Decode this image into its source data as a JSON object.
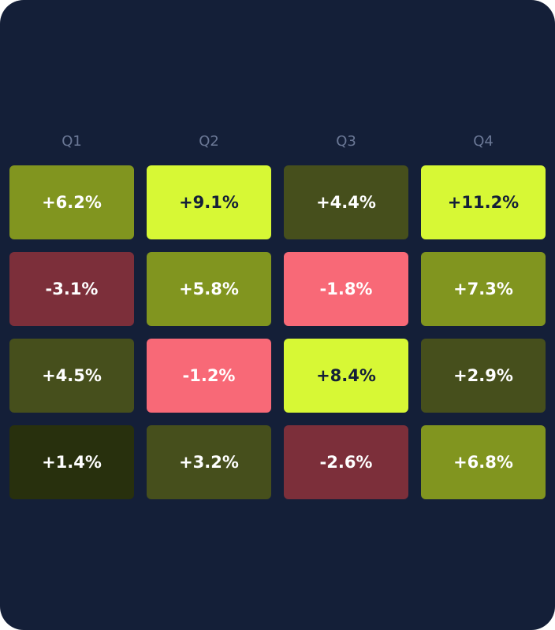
{
  "chart_data": {
    "type": "heatmap",
    "columns": [
      "Q1",
      "Q2",
      "Q3",
      "Q4"
    ],
    "values": [
      [
        6.2,
        9.1,
        4.4,
        11.2
      ],
      [
        -3.1,
        5.8,
        -1.8,
        7.3
      ],
      [
        4.5,
        -1.2,
        8.4,
        2.9
      ],
      [
        1.4,
        3.2,
        -2.6,
        6.8
      ]
    ],
    "labels": [
      [
        "+6.2%",
        "+9.1%",
        "+4.4%",
        "+11.2%"
      ],
      [
        "-3.1%",
        "+5.8%",
        "-1.8%",
        "+7.3%"
      ],
      [
        "+4.5%",
        "-1.2%",
        "+8.4%",
        "+2.9%"
      ],
      [
        "+1.4%",
        "+3.2%",
        "-2.6%",
        "+6.8%"
      ]
    ],
    "unit": "%",
    "colors": {
      "background": "#141f38",
      "header_text": "#6b7896",
      "pos_very_high": "#d7f835",
      "pos_high": "#81951f",
      "pos_medium": "#464f1c",
      "pos_low": "#28300d",
      "neg_high": "#f86977",
      "neg_medium": "#7c2f3a"
    }
  }
}
